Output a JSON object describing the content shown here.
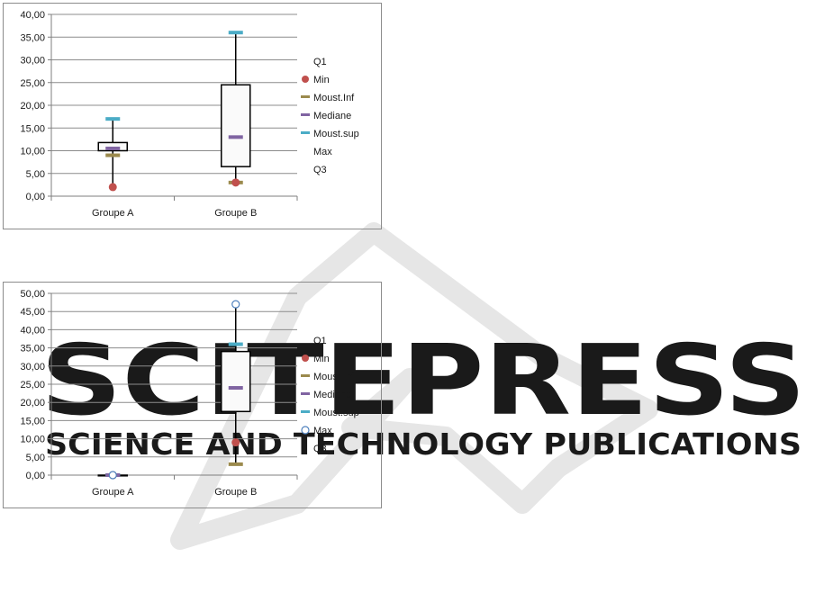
{
  "watermark": {
    "title": "SCITEPRESS",
    "subtitle": "SCIENCE AND TECHNOLOGY PUBLICATIONS",
    "color": "#e3e3e3"
  },
  "legend_labels": [
    "Q1",
    "Min",
    "Moust.Inf",
    "Mediane",
    "Moust.sup",
    "Max",
    "Q3"
  ],
  "colors": {
    "box_border": "#000000",
    "box_fill": "#fafafa",
    "min": "#c0504d",
    "moust_inf": "#9b8a4d",
    "mediane": "#8064a2",
    "moust_sup": "#4bacc6",
    "max": "#4f81bd",
    "grid": "#8c8c8c"
  },
  "chart_data": [
    {
      "type": "box",
      "categories": [
        "Groupe A",
        "Groupe B"
      ],
      "ylim": [
        0,
        40
      ],
      "ytick_step": 5,
      "ytick_labels": [
        "0,00",
        "5,00",
        "10,00",
        "15,00",
        "20,00",
        "25,00",
        "30,00",
        "35,00",
        "40,00"
      ],
      "max_is_hollow_marker": false,
      "series": [
        {
          "name": "Q1",
          "values": [
            10.0,
            6.5
          ]
        },
        {
          "name": "Min",
          "values": [
            2.0,
            3.0
          ]
        },
        {
          "name": "Moust.Inf",
          "values": [
            9.0,
            3.0
          ]
        },
        {
          "name": "Mediane",
          "values": [
            10.5,
            13.0
          ]
        },
        {
          "name": "Moust.sup",
          "values": [
            17.0,
            36.0
          ]
        },
        {
          "name": "Max",
          "values": [
            17.0,
            36.0
          ]
        },
        {
          "name": "Q3",
          "values": [
            11.8,
            24.5
          ]
        }
      ],
      "grid": true,
      "legend_position": "right"
    },
    {
      "type": "box",
      "categories": [
        "Groupe A",
        "Groupe B"
      ],
      "ylim": [
        0,
        50
      ],
      "ytick_step": 5,
      "ytick_labels": [
        "0,00",
        "5,00",
        "10,00",
        "15,00",
        "20,00",
        "25,00",
        "30,00",
        "35,00",
        "40,00",
        "45,00",
        "50,00"
      ],
      "max_is_hollow_marker": true,
      "series": [
        {
          "name": "Q1",
          "values": [
            0.0,
            17.5
          ]
        },
        {
          "name": "Min",
          "values": [
            0.0,
            9.0
          ]
        },
        {
          "name": "Moust.Inf",
          "values": [
            0.0,
            3.0
          ]
        },
        {
          "name": "Mediane",
          "values": [
            0.0,
            24.0
          ]
        },
        {
          "name": "Moust.sup",
          "values": [
            0.0,
            36.0
          ]
        },
        {
          "name": "Max",
          "values": [
            0.0,
            47.0
          ]
        },
        {
          "name": "Q3",
          "values": [
            0.0,
            34.0
          ]
        }
      ],
      "grid": true,
      "legend_position": "right"
    }
  ]
}
